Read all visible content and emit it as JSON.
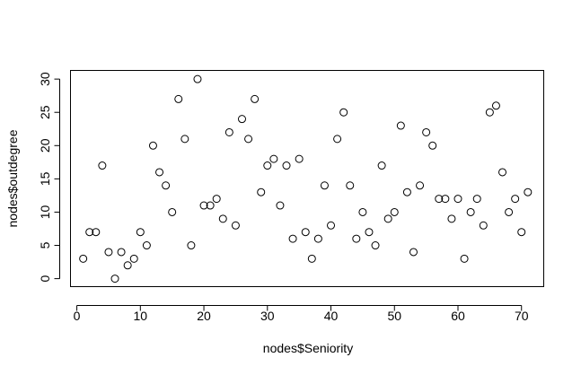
{
  "chart_data": {
    "type": "scatter",
    "title": "",
    "xlabel": "nodes$Seniority",
    "ylabel": "nodes$outdegree",
    "xlim": [
      -1,
      73.5
    ],
    "ylim": [
      -1.2,
      31.3
    ],
    "xticks": [
      0,
      10,
      20,
      30,
      40,
      50,
      60,
      70
    ],
    "yticks": [
      0,
      5,
      10,
      15,
      20,
      25,
      30
    ],
    "grid": false,
    "point_style": "open-circle",
    "points": [
      [
        1,
        3
      ],
      [
        2,
        7
      ],
      [
        3,
        7
      ],
      [
        4,
        17
      ],
      [
        5,
        4
      ],
      [
        6,
        0
      ],
      [
        7,
        4
      ],
      [
        8,
        2
      ],
      [
        9,
        3
      ],
      [
        10,
        7
      ],
      [
        11,
        5
      ],
      [
        12,
        20
      ],
      [
        13,
        16
      ],
      [
        14,
        14
      ],
      [
        15,
        10
      ],
      [
        16,
        27
      ],
      [
        17,
        21
      ],
      [
        18,
        5
      ],
      [
        19,
        30
      ],
      [
        20,
        11
      ],
      [
        21,
        11
      ],
      [
        22,
        12
      ],
      [
        23,
        9
      ],
      [
        24,
        22
      ],
      [
        25,
        8
      ],
      [
        26,
        24
      ],
      [
        27,
        21
      ],
      [
        28,
        27
      ],
      [
        29,
        13
      ],
      [
        30,
        17
      ],
      [
        31,
        18
      ],
      [
        32,
        11
      ],
      [
        33,
        17
      ],
      [
        34,
        6
      ],
      [
        35,
        18
      ],
      [
        36,
        7
      ],
      [
        37,
        3
      ],
      [
        38,
        6
      ],
      [
        39,
        14
      ],
      [
        40,
        8
      ],
      [
        41,
        21
      ],
      [
        42,
        25
      ],
      [
        43,
        14
      ],
      [
        44,
        6
      ],
      [
        45,
        10
      ],
      [
        46,
        7
      ],
      [
        47,
        5
      ],
      [
        48,
        17
      ],
      [
        49,
        9
      ],
      [
        50,
        10
      ],
      [
        51,
        23
      ],
      [
        52,
        13
      ],
      [
        53,
        4
      ],
      [
        54,
        14
      ],
      [
        55,
        22
      ],
      [
        56,
        20
      ],
      [
        57,
        12
      ],
      [
        58,
        12
      ],
      [
        59,
        9
      ],
      [
        60,
        12
      ],
      [
        61,
        3
      ],
      [
        62,
        10
      ],
      [
        63,
        12
      ],
      [
        64,
        8
      ],
      [
        65,
        25
      ],
      [
        66,
        26
      ],
      [
        67,
        16
      ],
      [
        68,
        10
      ],
      [
        69,
        12
      ],
      [
        70,
        7
      ],
      [
        71,
        13
      ]
    ]
  }
}
